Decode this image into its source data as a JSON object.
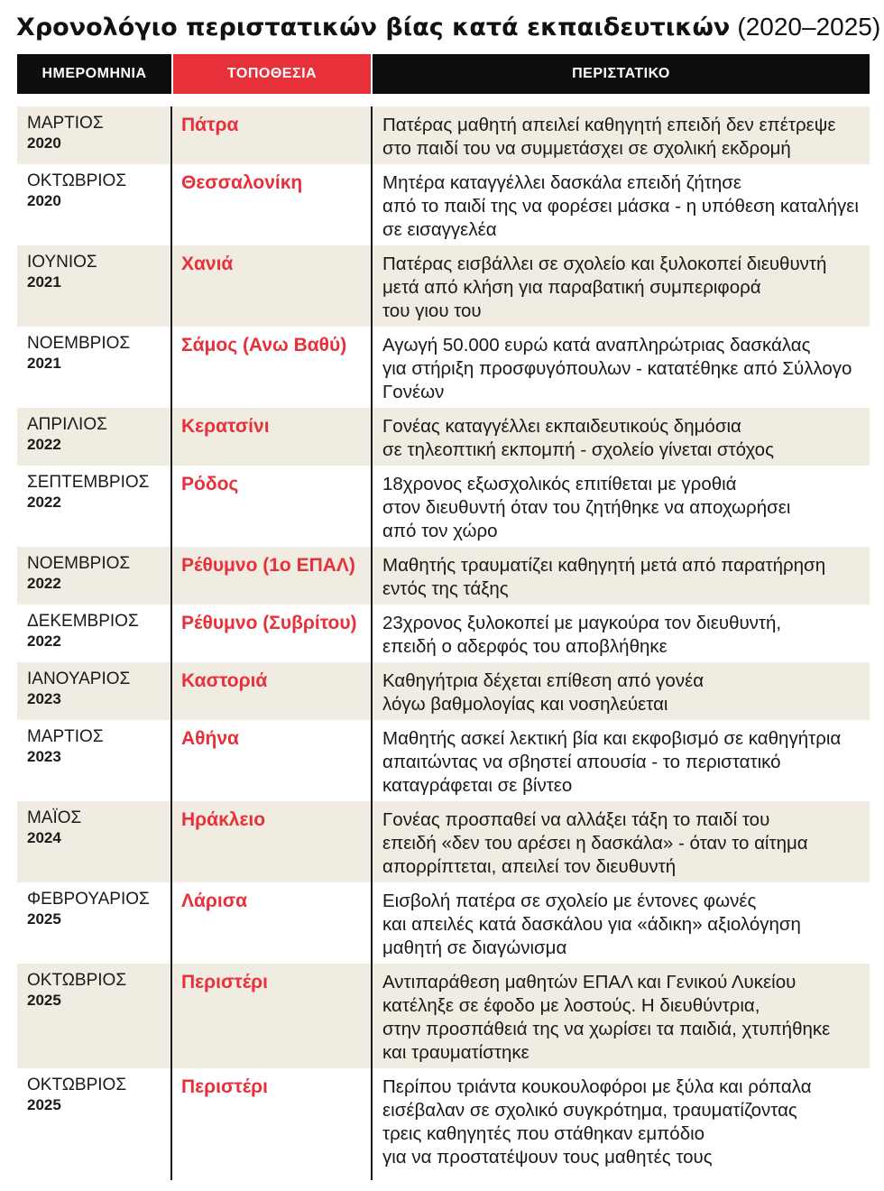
{
  "title": {
    "main": "Χρονολόγιο περιστατικών βίας κατά εκπαιδευτικών",
    "range": "(2020–2025)"
  },
  "columns": {
    "date": "ΗΜΕΡΟΜΗΝΙΑ",
    "location": "ΤΟΠΟΘΕΣΙΑ",
    "incident": "ΠΕΡΙΣΤΑΤΙΚΟ"
  },
  "colors": {
    "accent": "#e8303b",
    "dark": "#0d0d0d",
    "shade": "#f1ece1"
  },
  "rows": [
    {
      "month": "ΜΑΡΤΙΟΣ",
      "year": "2020",
      "location": "Πάτρα",
      "lines": [
        "Πατέρας μαθητή απειλεί καθηγητή επειδή δεν επέτρεψε",
        "στο παιδί του να συμμετάσχει σε σχολική εκδρομή"
      ]
    },
    {
      "month": "ΟΚΤΩΒΡΙΟΣ",
      "year": "2020",
      "location": "Θεσσαλονίκη",
      "lines": [
        "Μητέρα καταγγέλλει δασκάλα επειδή ζήτησε",
        "από το παιδί της να φορέσει μάσκα - η υπόθεση καταλήγει",
        "σε εισαγγελέα"
      ]
    },
    {
      "month": "ΙΟΥΝΙΟΣ",
      "year": "2021",
      "location": "Χανιά",
      "lines": [
        "Πατέρας εισβάλλει σε σχολείο και ξυλοκοπεί διευθυντή",
        "μετά από κλήση για παραβατική συμπεριφορά",
        "του γιου του"
      ]
    },
    {
      "month": "ΝΟΕΜΒΡΙΟΣ",
      "year": "2021",
      "location": "Σάμος (Ανω Βαθύ)",
      "lines": [
        "Αγωγή 50.000 ευρώ κατά αναπληρώτριας δασκάλας",
        "για στήριξη προσφυγόπουλων - κατατέθηκε από Σύλλογο",
        "Γονέων"
      ]
    },
    {
      "month": "ΑΠΡΙΛΙΟΣ",
      "year": "2022",
      "location": "Κερατσίνι",
      "lines": [
        "Γονέας καταγγέλλει εκπαιδευτικούς δημόσια",
        "σε τηλεοπτική εκπομπή - σχολείο γίνεται στόχος"
      ]
    },
    {
      "month": "ΣΕΠΤΕΜΒΡΙΟΣ",
      "year": "2022",
      "location": "Ρόδος",
      "lines": [
        "18χρονος εξωσχολικός επιτίθεται με γροθιά",
        "στον διευθυντή όταν του ζητήθηκε να αποχωρήσει",
        "από τον χώρο"
      ]
    },
    {
      "month": "ΝΟΕΜΒΡΙΟΣ",
      "year": "2022",
      "location": "Ρέθυμνο (1ο ΕΠΑΛ)",
      "lines": [
        "Μαθητής τραυματίζει καθηγητή μετά από παρατήρηση",
        "εντός της τάξης"
      ]
    },
    {
      "month": "ΔΕΚΕΜΒΡΙΟΣ",
      "year": "2022",
      "location": "Ρέθυμνο (Συβρίτου)",
      "lines": [
        "23χρονος ξυλοκοπεί με μαγκούρα τον διευθυντή,",
        "επειδή ο αδερφός του αποβλήθηκε"
      ]
    },
    {
      "month": "ΙΑΝΟΥΑΡΙΟΣ",
      "year": "2023",
      "location": "Καστοριά",
      "lines": [
        "Καθηγήτρια δέχεται επίθεση από γονέα",
        "λόγω βαθμολογίας και νοσηλεύεται"
      ]
    },
    {
      "month": "ΜΑΡΤΙΟΣ",
      "year": "2023",
      "location": "Αθήνα",
      "lines": [
        "Μαθητής ασκεί λεκτική βία και εκφοβισμό σε καθηγήτρια",
        "απαιτώντας να σβηστεί απουσία - το περιστατικό",
        "καταγράφεται σε βίντεο"
      ]
    },
    {
      "month": "ΜΑΪΟΣ",
      "year": "2024",
      "location": "Ηράκλειο",
      "lines": [
        "Γονέας προσπαθεί να αλλάξει τάξη το παιδί του",
        "επειδή «δεν του αρέσει η δασκάλα» - όταν το αίτημα",
        "απορρίπτεται, απειλεί τον διευθυντή"
      ]
    },
    {
      "month": "ΦΕΒΡΟΥΑΡΙΟΣ",
      "year": "2025",
      "location": "Λάρισα",
      "lines": [
        "Εισβολή πατέρα σε σχολείο με έντονες φωνές",
        "και απειλές κατά δασκάλου για «άδικη» αξιολόγηση",
        "μαθητή σε διαγώνισμα"
      ]
    },
    {
      "month": "ΟΚΤΩΒΡΙΟΣ",
      "year": "2025",
      "location": "Περιστέρι",
      "lines": [
        "Αντιπαράθεση μαθητών ΕΠΑΛ και Γενικού Λυκείου",
        "κατέληξε σε έφοδο με λοστούς. Η διευθύντρια,",
        "στην προσπάθειά της να χωρίσει τα παιδιά, χτυπήθηκε",
        "και τραυματίστηκε"
      ]
    },
    {
      "month": "ΟΚΤΩΒΡΙΟΣ",
      "year": "2025",
      "location": "Περιστέρι",
      "lines": [
        "Περίπου τριάντα κουκουλοφόροι με ξύλα και ρόπαλα",
        "εισέβαλαν σε σχολικό συγκρότημα, τραυματίζοντας",
        "τρεις καθηγητές που στάθηκαν εμπόδιο",
        "για να προστατέψουν τους μαθητές τους"
      ]
    }
  ]
}
